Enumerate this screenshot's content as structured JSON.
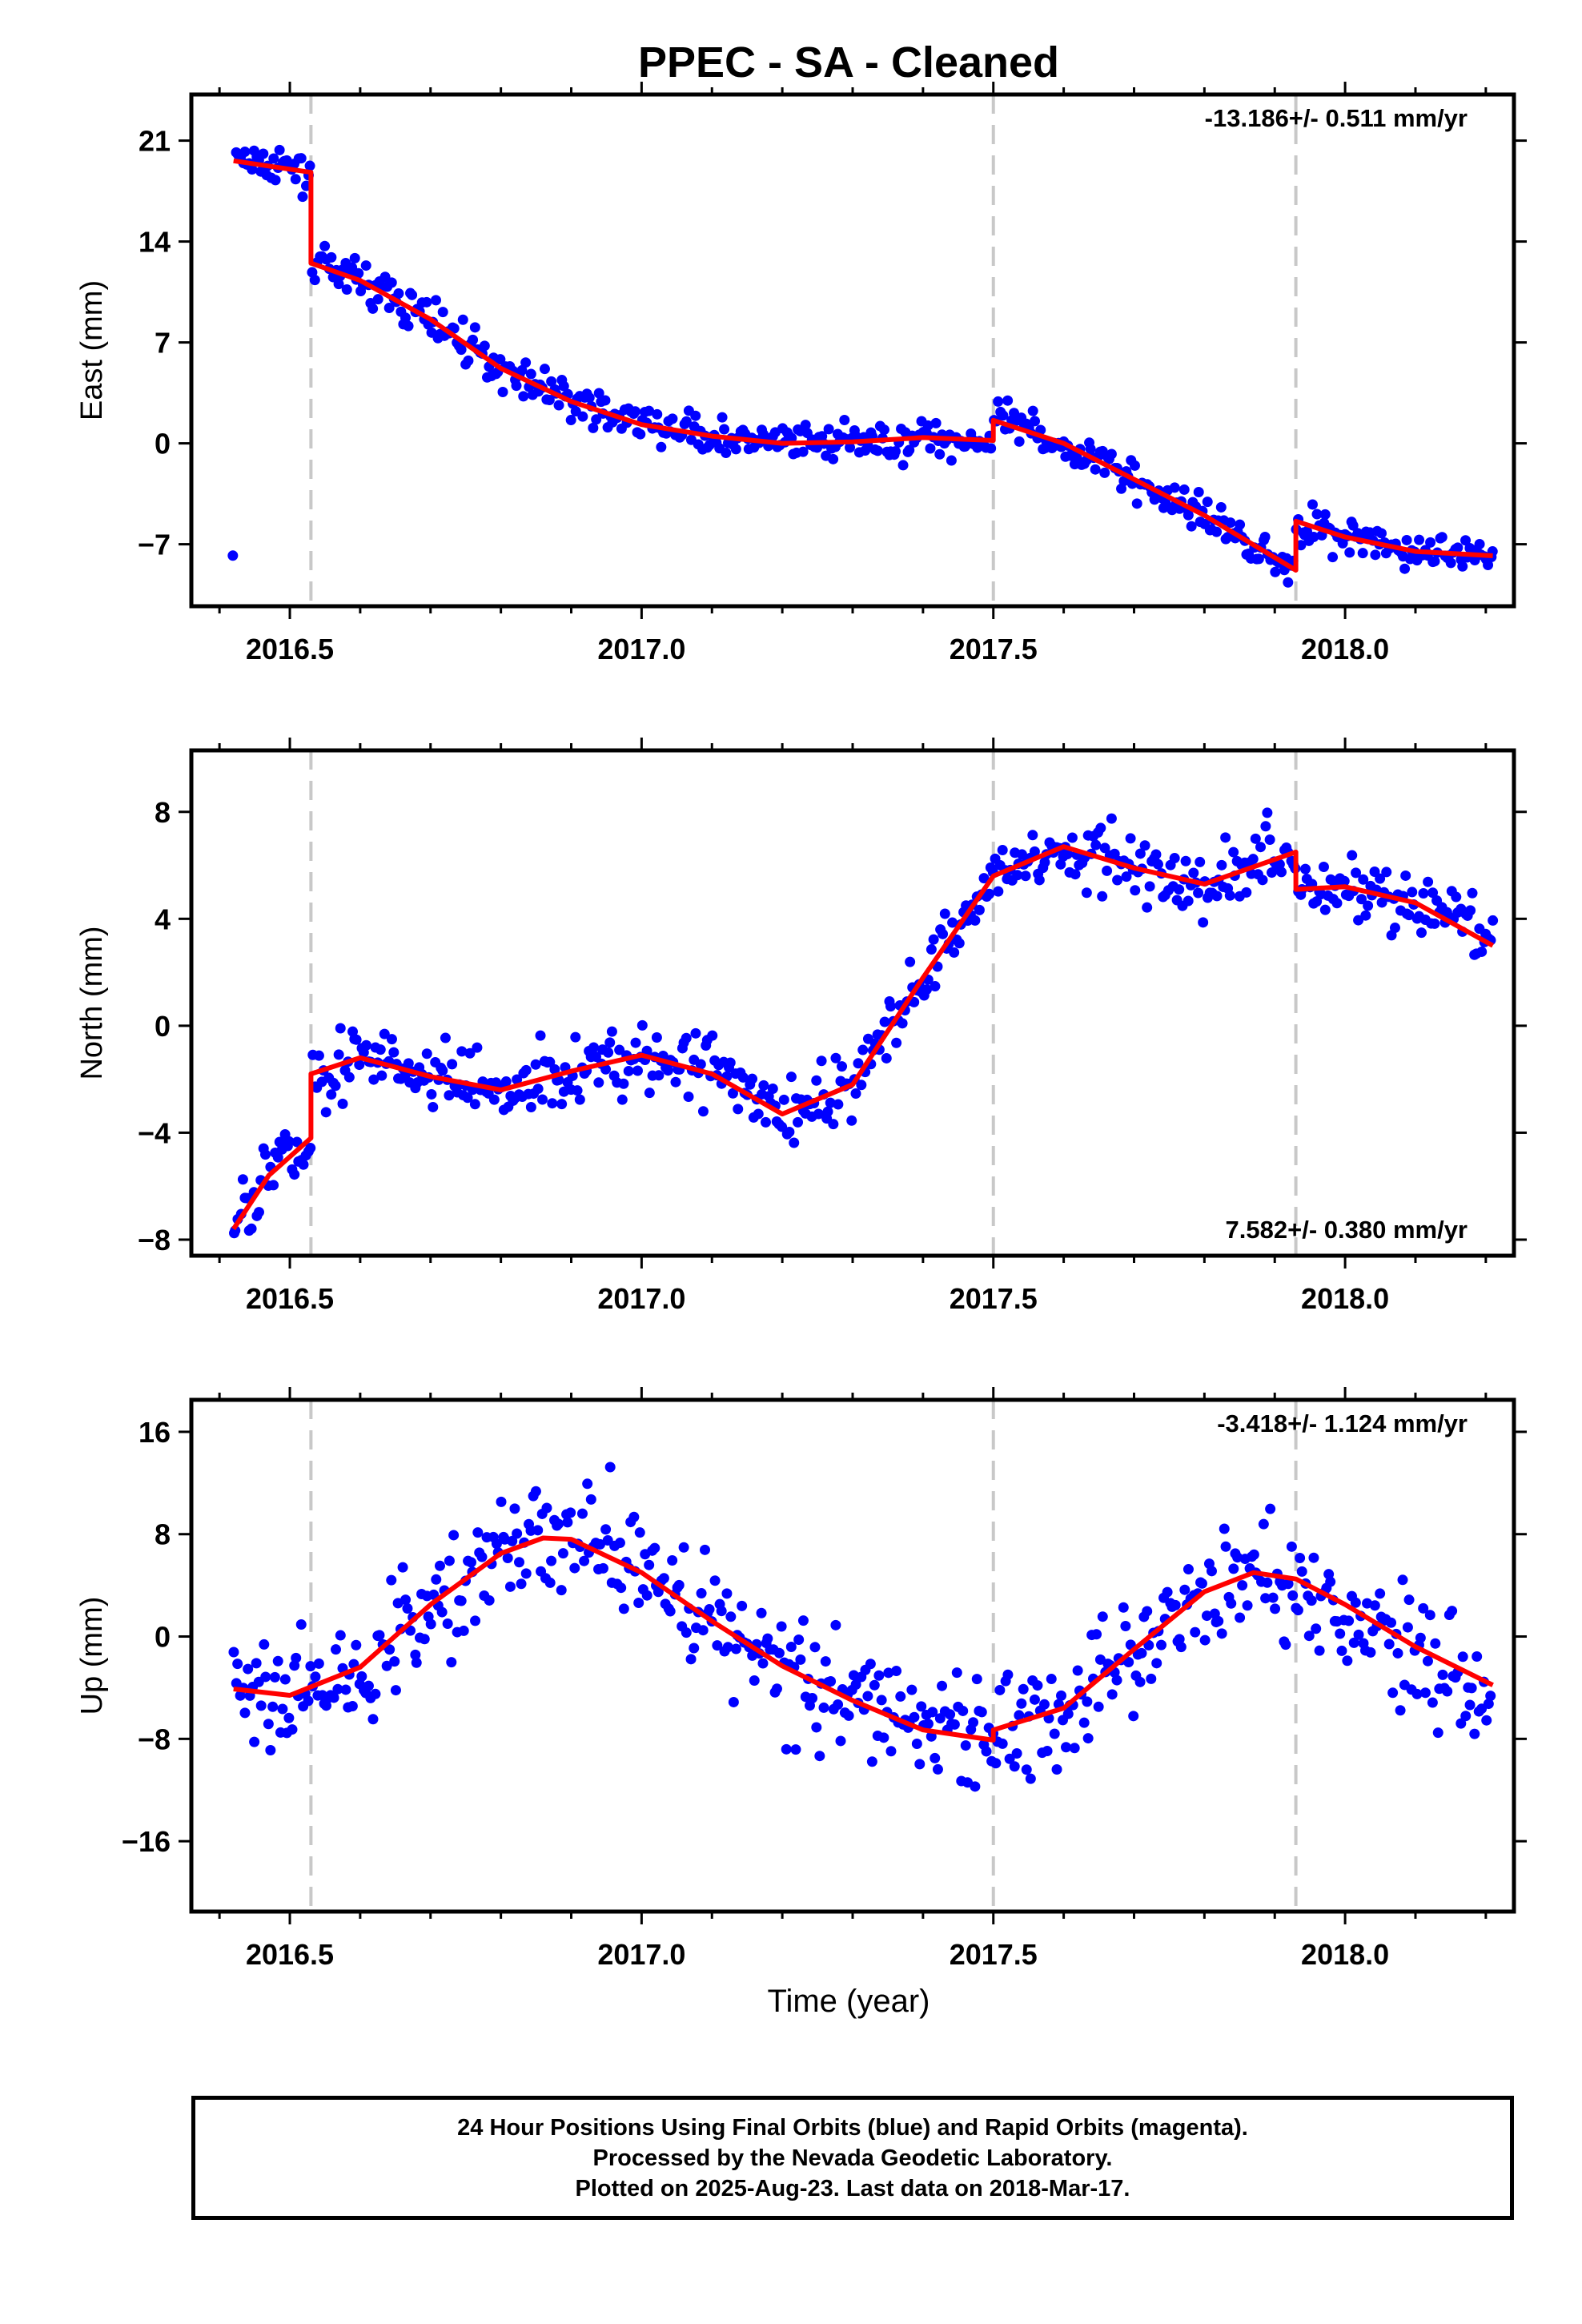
{
  "title": "PPEC  - SA - Cleaned",
  "xlabel": "Time (year)",
  "footer": {
    "line1": "24 Hour Positions Using Final Orbits (blue) and Rapid Orbits (magenta).",
    "line2": "Processed by the Nevada Geodetic Laboratory.",
    "line3": "Plotted on 2025-Aug-23. Last data on 2018-Mar-17."
  },
  "colors": {
    "points": "#0000ff",
    "fit": "#ff0000",
    "offsets": "#c8c8c8",
    "frame": "#000000"
  },
  "chart_data": [
    {
      "type": "scatter",
      "ylabel": "East (mm)",
      "rate": "-13.186+/- 0.511 mm/yr",
      "rate_position": "top-right",
      "xlim": [
        2016.36,
        2018.24
      ],
      "ylim": [
        -11.3,
        24.2
      ],
      "yticks": [
        -7,
        0,
        7,
        14,
        21
      ],
      "xticks": [
        2016.5,
        2017.0,
        2017.5,
        2018.0
      ],
      "offsets": [
        2016.53,
        2017.5,
        2017.93
      ],
      "fit": [
        [
          2016.42,
          19.6
        ],
        [
          2016.53,
          18.8
        ],
        [
          2016.53,
          12.5
        ],
        [
          2016.6,
          11.3
        ],
        [
          2016.7,
          8.6
        ],
        [
          2016.8,
          5.2
        ],
        [
          2016.9,
          2.9
        ],
        [
          2017.0,
          1.3
        ],
        [
          2017.1,
          0.5
        ],
        [
          2017.2,
          0.0
        ],
        [
          2017.3,
          0.1
        ],
        [
          2017.4,
          0.4
        ],
        [
          2017.5,
          0.2
        ],
        [
          2017.5,
          1.6
        ],
        [
          2017.6,
          0.0
        ],
        [
          2017.7,
          -2.5
        ],
        [
          2017.8,
          -5.0
        ],
        [
          2017.93,
          -8.8
        ],
        [
          2017.93,
          -5.4
        ],
        [
          2018.0,
          -6.5
        ],
        [
          2018.1,
          -7.5
        ],
        [
          2018.21,
          -7.8
        ]
      ]
    },
    {
      "type": "scatter",
      "ylabel": "North (mm)",
      "rate": "7.582+/- 0.380 mm/yr",
      "rate_position": "bottom-right",
      "xlim": [
        2016.36,
        2018.24
      ],
      "ylim": [
        -8.6,
        10.3
      ],
      "yticks": [
        -8,
        -4,
        0,
        4,
        8
      ],
      "xticks": [
        2016.5,
        2017.0,
        2017.5,
        2018.0
      ],
      "offsets": [
        2016.53,
        2017.5,
        2017.93
      ],
      "fit": [
        [
          2016.42,
          -7.6
        ],
        [
          2016.47,
          -5.6
        ],
        [
          2016.53,
          -4.2
        ],
        [
          2016.53,
          -1.8
        ],
        [
          2016.6,
          -1.2
        ],
        [
          2016.7,
          -1.9
        ],
        [
          2016.8,
          -2.4
        ],
        [
          2016.9,
          -1.7
        ],
        [
          2017.0,
          -1.1
        ],
        [
          2017.1,
          -1.8
        ],
        [
          2017.2,
          -3.3
        ],
        [
          2017.3,
          -2.2
        ],
        [
          2017.4,
          1.8
        ],
        [
          2017.5,
          5.6
        ],
        [
          2017.6,
          6.7
        ],
        [
          2017.7,
          5.9
        ],
        [
          2017.8,
          5.3
        ],
        [
          2017.93,
          6.5
        ],
        [
          2017.93,
          5.1
        ],
        [
          2018.0,
          5.2
        ],
        [
          2018.1,
          4.6
        ],
        [
          2018.21,
          3.0
        ]
      ]
    },
    {
      "type": "scatter",
      "ylabel": "Up (mm)",
      "rate": "-3.418+/- 1.124 mm/yr",
      "rate_position": "top-right",
      "xlim": [
        2016.36,
        2018.24
      ],
      "ylim": [
        -21.5,
        18.5
      ],
      "yticks": [
        -16,
        -8,
        0,
        8,
        16
      ],
      "xticks": [
        2016.5,
        2017.0,
        2017.5,
        2018.0
      ],
      "offsets": [
        2016.53,
        2017.5,
        2017.93
      ],
      "fit": [
        [
          2016.42,
          -4.1
        ],
        [
          2016.5,
          -4.6
        ],
        [
          2016.6,
          -2.4
        ],
        [
          2016.7,
          2.5
        ],
        [
          2016.8,
          6.5
        ],
        [
          2016.86,
          7.7
        ],
        [
          2016.9,
          7.6
        ],
        [
          2017.0,
          5.0
        ],
        [
          2017.1,
          1.2
        ],
        [
          2017.2,
          -2.3
        ],
        [
          2017.3,
          -5.0
        ],
        [
          2017.4,
          -7.3
        ],
        [
          2017.5,
          -8.1
        ],
        [
          2017.5,
          -7.3
        ],
        [
          2017.6,
          -5.6
        ],
        [
          2017.7,
          -1.0
        ],
        [
          2017.8,
          3.5
        ],
        [
          2017.87,
          5.0
        ],
        [
          2017.93,
          4.5
        ],
        [
          2018.0,
          2.5
        ],
        [
          2018.1,
          -0.8
        ],
        [
          2018.21,
          -3.8
        ]
      ]
    }
  ]
}
